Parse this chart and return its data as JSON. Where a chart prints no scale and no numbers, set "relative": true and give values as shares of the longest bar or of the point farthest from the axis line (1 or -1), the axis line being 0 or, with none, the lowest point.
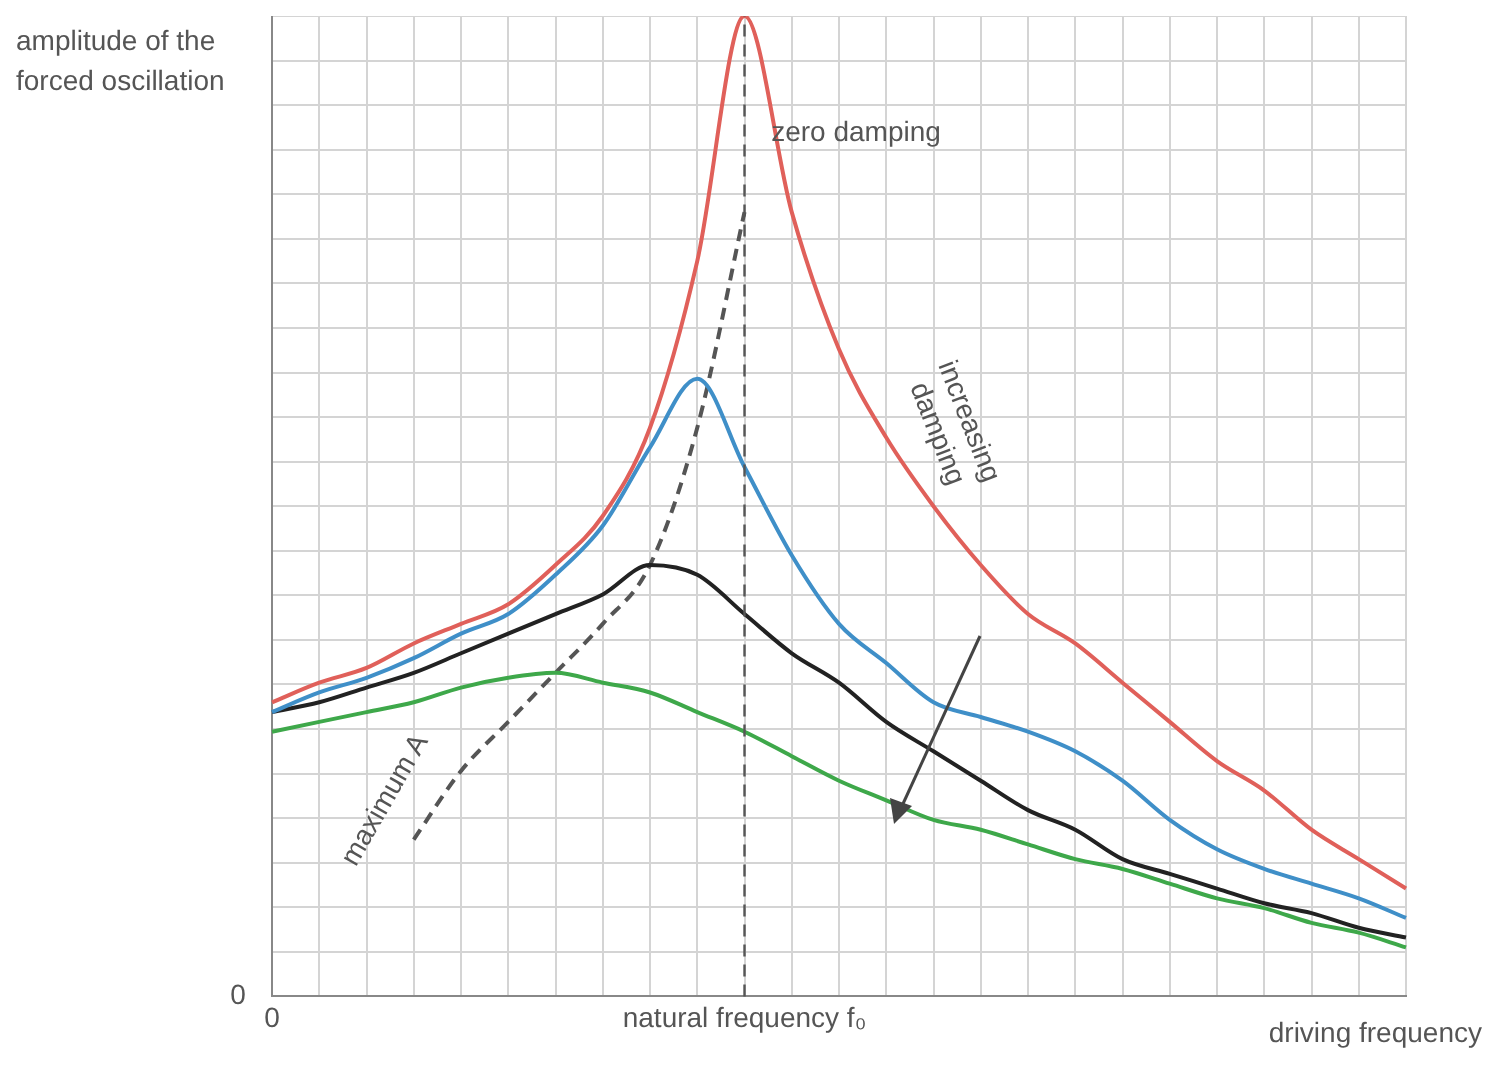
{
  "chart_data": {
    "type": "line",
    "relative": true,
    "ylabel": "amplitude of the forced oscillation",
    "xlabel": "driving frequency",
    "categories": [
      "0",
      null,
      null,
      null,
      null,
      null,
      null,
      null,
      null,
      null,
      "natural frequency f₀",
      null,
      null,
      null,
      null,
      null,
      null,
      null,
      null,
      null,
      null,
      null,
      null,
      null,
      null
    ],
    "grid": true,
    "legend": false,
    "marker": "none",
    "line_style": "solid",
    "series": [
      {
        "color": "#e0605a",
        "values": [
          0.3,
          0.32,
          0.335,
          0.36,
          0.38,
          0.4,
          0.44,
          0.49,
          0.58,
          0.75,
          1,
          0.8,
          0.66,
          0.57,
          0.5,
          0.44,
          0.39,
          0.36,
          0.32,
          0.28,
          0.24,
          0.21,
          0.17,
          0.14,
          0.11
        ]
      },
      {
        "color": "#3f8fc8",
        "values": [
          0.29,
          0.31,
          0.325,
          0.345,
          0.37,
          0.39,
          0.43,
          0.48,
          0.56,
          0.63,
          0.54,
          0.45,
          0.38,
          0.34,
          0.3,
          0.285,
          0.27,
          0.25,
          0.22,
          0.18,
          0.15,
          0.13,
          0.115,
          0.1,
          0.08
        ]
      },
      {
        "color": "#222222",
        "values": [
          0.29,
          0.3,
          0.315,
          0.33,
          0.35,
          0.37,
          0.39,
          0.41,
          0.44,
          0.43,
          0.39,
          0.35,
          0.32,
          0.28,
          0.25,
          0.22,
          0.19,
          0.17,
          0.14,
          0.125,
          0.11,
          0.095,
          0.085,
          0.07,
          0.06
        ]
      },
      {
        "color": "#3ea84a",
        "values": [
          0.27,
          0.28,
          0.29,
          0.3,
          0.315,
          0.325,
          0.33,
          0.32,
          0.31,
          0.29,
          0.27,
          0.245,
          0.22,
          0.2,
          0.18,
          0.17,
          0.155,
          0.14,
          0.13,
          0.115,
          0.1,
          0.09,
          0.075,
          0.065,
          0.05
        ]
      },
      {
        "color": "#555555",
        "line_style": "dashed",
        "values": [
          null,
          null,
          null,
          0.16,
          0.23,
          0.28,
          0.33,
          0.38,
          0.44,
          0.58,
          0.8,
          null,
          null,
          null,
          null,
          null,
          null,
          null,
          null,
          null,
          null,
          null,
          null,
          null,
          null
        ]
      }
    ],
    "ref_lines": [
      {
        "axis": "x",
        "value": "natural frequency f₀",
        "color": "#555555",
        "line_style": "dashed"
      }
    ],
    "annotations": [
      "zero damping",
      "increasing damping",
      "maximum A",
      "0"
    ]
  }
}
